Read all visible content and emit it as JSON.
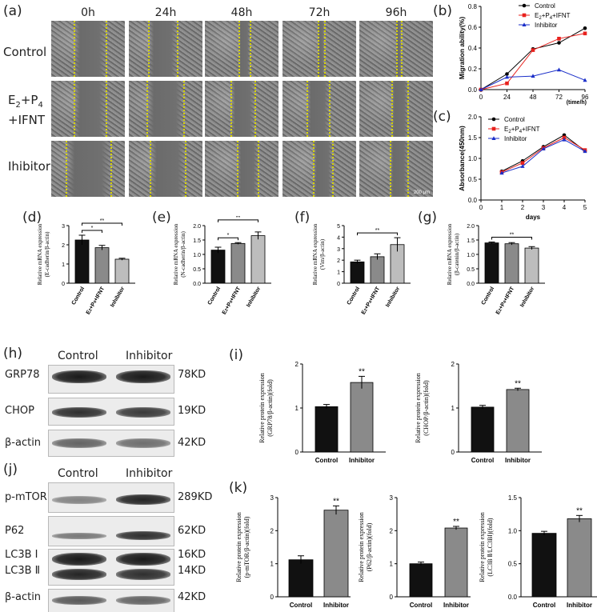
{
  "panel_letters": {
    "a": "(a)",
    "b": "(b)",
    "c": "(c)",
    "d": "(d)",
    "e": "(e)",
    "f": "(f)",
    "g": "(g)",
    "h": "(h)",
    "i": "(i)",
    "j": "(j)",
    "k": "(k)"
  },
  "scratch": {
    "times": [
      "0h",
      "24h",
      "48h",
      "72h",
      "96h"
    ],
    "rows": [
      "Control",
      "E2+P4+IFNT",
      "Ihibitor"
    ],
    "row_label_e2": {
      "e": "E",
      "s2": "2",
      "p": "+P",
      "s4": "4",
      "ifnt": "+IFNT"
    },
    "scalebar": "200 μm"
  },
  "blot_h": {
    "groups": [
      "Control",
      "Inhibitor"
    ],
    "rows": [
      {
        "label": "GRP78",
        "kd": "78KD"
      },
      {
        "label": "CHOP",
        "kd": "19KD"
      },
      {
        "label": "β-actin",
        "kd": "42KD"
      }
    ]
  },
  "blot_j": {
    "groups": [
      "Control",
      "Inhibitor"
    ],
    "rows": [
      {
        "label": "p-mTOR",
        "kd": "289KD"
      },
      {
        "label": "P62",
        "kd": "62KD"
      },
      {
        "label": "LC3B Ⅰ",
        "kd": "16KD"
      },
      {
        "label": "LC3B Ⅱ",
        "kd": "14KD"
      },
      {
        "label": "β-actin",
        "kd": "42KD"
      }
    ]
  },
  "colors": {
    "control": "#000000",
    "e2p4": "#e8211d",
    "inhibitor": "#1b2fc9",
    "bar_dark": "#111111",
    "bar_mid": "#8a8a8a",
    "bar_light": "#bdbdbd",
    "yellow": "#d8d400"
  },
  "chart_data": [
    {
      "id": "b",
      "type": "line",
      "x": [
        0,
        24,
        48,
        72,
        96
      ],
      "xlabel": "(time/h)",
      "ylabel": "Migration ability(%)",
      "xticks": [
        "0",
        "24",
        "48",
        "72",
        "96"
      ],
      "yticks": [
        "0.0",
        "0.2",
        "0.4",
        "0.6",
        "0.8"
      ],
      "ylim": [
        0,
        0.8
      ],
      "xlim": [
        0,
        96
      ],
      "legend_position": "top-right",
      "series": [
        {
          "name": "Control",
          "values": [
            0.0,
            0.15,
            0.39,
            0.45,
            0.59
          ],
          "marker": "circle",
          "color": "#000000"
        },
        {
          "name": "E2+P4+IFNT",
          "values": [
            0.0,
            0.06,
            0.38,
            0.49,
            0.54
          ],
          "marker": "square",
          "color": "#e8211d"
        },
        {
          "name": "Inhibitor",
          "values": [
            0.0,
            0.12,
            0.13,
            0.19,
            0.09
          ],
          "marker": "triangle",
          "color": "#1b2fc9"
        }
      ],
      "legend": {
        "control": "Control",
        "e2_base": "E",
        "e2_sub": "2",
        "p_base": "+P",
        "p_sub": "4",
        "tail": "+IFNT",
        "inhibitor": "Inhibitor"
      }
    },
    {
      "id": "c",
      "type": "line",
      "x": [
        1,
        2,
        3,
        4,
        5
      ],
      "xlabel": "days",
      "ylabel": "Absorbance(450nm)",
      "xticks": [
        "0",
        "1",
        "2",
        "3",
        "4",
        "5"
      ],
      "yticks": [
        "0.0",
        "0.5",
        "1.0",
        "1.5",
        "2.0"
      ],
      "ylim": [
        0,
        2.0
      ],
      "xlim": [
        0,
        5
      ],
      "legend_position": "top-left",
      "series": [
        {
          "name": "Control",
          "values": [
            0.69,
            0.94,
            1.28,
            1.56,
            1.18
          ],
          "marker": "circle",
          "color": "#000000"
        },
        {
          "name": "E2+P4+IFNT",
          "values": [
            0.67,
            0.89,
            1.25,
            1.5,
            1.2
          ],
          "marker": "square",
          "color": "#e8211d"
        },
        {
          "name": "Inhibitor",
          "values": [
            0.65,
            0.81,
            1.23,
            1.45,
            1.17
          ],
          "marker": "triangle",
          "color": "#1b2fc9"
        }
      ],
      "legend": {
        "control": "Control",
        "e2_base": "E",
        "e2_sub": "2",
        "p_base": "+P",
        "p_sub": "4",
        "tail": "+IFNT",
        "inhibitor": "Inhibitor"
      }
    },
    {
      "id": "d",
      "type": "bar",
      "categories": [
        "Control",
        "E2+P4+IFNT",
        "Inhibitor"
      ],
      "values": [
        2.25,
        1.85,
        1.25
      ],
      "errors": [
        0.25,
        0.12,
        0.05
      ],
      "ylabel": "Relative mRNA expression",
      "ylabel2": "(E-cadherin/β-actin)",
      "yticks": [
        "0",
        "1",
        "2",
        "3"
      ],
      "ylim": [
        0,
        3
      ],
      "sig": [
        {
          "from": 0,
          "to": 1,
          "label": "*"
        },
        {
          "from": 0,
          "to": 2,
          "label": "**"
        }
      ]
    },
    {
      "id": "e",
      "type": "bar",
      "categories": [
        "Control",
        "E2+P4+IFNT",
        "Inhibitor"
      ],
      "values": [
        1.15,
        1.38,
        1.65
      ],
      "errors": [
        0.1,
        0.03,
        0.13
      ],
      "ylabel": "Relative mRNA expression",
      "ylabel2": "(N-cadherin/β-actin)",
      "yticks": [
        "0.0",
        "0.5",
        "1.0",
        "1.5",
        "2.0"
      ],
      "ylim": [
        0,
        2
      ],
      "sig": [
        {
          "from": 0,
          "to": 1,
          "label": "*"
        },
        {
          "from": 0,
          "to": 2,
          "label": "**"
        }
      ]
    },
    {
      "id": "f",
      "type": "bar",
      "categories": [
        "Control",
        "E2+P4+IFNT",
        "Inhibitor"
      ],
      "values": [
        1.85,
        2.3,
        3.35
      ],
      "errors": [
        0.15,
        0.25,
        0.6
      ],
      "ylabel": "Relative mRNA expression",
      "ylabel2": "(Vim/β-actin)",
      "yticks": [
        "0",
        "1",
        "2",
        "3",
        "4",
        "5"
      ],
      "ylim": [
        0,
        5
      ],
      "sig": [
        {
          "from": 0,
          "to": 2,
          "label": "**"
        }
      ]
    },
    {
      "id": "g",
      "type": "bar",
      "categories": [
        "Control",
        "E2+P4+IFNT",
        "Inhibitor"
      ],
      "values": [
        1.4,
        1.37,
        1.22
      ],
      "errors": [
        0.03,
        0.04,
        0.05
      ],
      "ylabel": "Relative mRNA expression",
      "ylabel2": "(β-catenin/β-actin)",
      "yticks": [
        "0.0",
        "0.5",
        "1.0",
        "1.5",
        "2.0"
      ],
      "ylim": [
        0,
        2
      ],
      "sig": [
        {
          "from": 0,
          "to": 2,
          "label": "**"
        }
      ]
    },
    {
      "id": "i1",
      "type": "bar",
      "categories": [
        "Control",
        "Inhibitor"
      ],
      "values": [
        1.03,
        1.58
      ],
      "errors": [
        0.05,
        0.14
      ],
      "ylabel": "Relative protein expression",
      "ylabel2": "(GRP78/β-actin)(fold)",
      "yticks": [
        "0",
        "1",
        "2"
      ],
      "ylim": [
        0,
        2
      ],
      "sig": [
        {
          "bar": 1,
          "label": "**"
        }
      ]
    },
    {
      "id": "i2",
      "type": "bar",
      "categories": [
        "Control",
        "Inhibitor"
      ],
      "values": [
        1.02,
        1.42
      ],
      "errors": [
        0.04,
        0.03
      ],
      "ylabel": "Relative protein expression",
      "ylabel2": "(CHOP/β-actin)(fold)",
      "yticks": [
        "0",
        "1",
        "2"
      ],
      "ylim": [
        0,
        2
      ],
      "sig": [
        {
          "bar": 1,
          "label": "**"
        }
      ]
    },
    {
      "id": "k1",
      "type": "bar",
      "categories": [
        "Control",
        "Inhibitor"
      ],
      "values": [
        1.12,
        2.62
      ],
      "errors": [
        0.12,
        0.13
      ],
      "ylabel": "Relative protein expression",
      "ylabel2": "(p-mTOR/β-actin)(fold)",
      "yticks": [
        "0",
        "1",
        "2",
        "3"
      ],
      "ylim": [
        0,
        3
      ],
      "sig": [
        {
          "bar": 1,
          "label": "**"
        }
      ]
    },
    {
      "id": "k2",
      "type": "bar",
      "categories": [
        "Control",
        "Inhibitor"
      ],
      "values": [
        1.0,
        2.08
      ],
      "errors": [
        0.05,
        0.05
      ],
      "ylabel": "Relative protein expression",
      "ylabel2": "(P62/β-actin)(fold)",
      "yticks": [
        "0",
        "1",
        "2",
        "3"
      ],
      "ylim": [
        0,
        3
      ],
      "sig": [
        {
          "bar": 1,
          "label": "**"
        }
      ]
    },
    {
      "id": "k3",
      "type": "bar",
      "categories": [
        "Control",
        "Inhibitor"
      ],
      "values": [
        0.96,
        1.18
      ],
      "errors": [
        0.03,
        0.05
      ],
      "ylabel": "Relative protein expression",
      "ylabel2": "(LC3B Ⅱ/LC3BⅠ)(fold)",
      "yticks": [
        "0.0",
        "0.5",
        "1.0",
        "1.5"
      ],
      "ylim": [
        0,
        1.5
      ],
      "sig": [
        {
          "bar": 1,
          "label": "**"
        }
      ]
    }
  ]
}
